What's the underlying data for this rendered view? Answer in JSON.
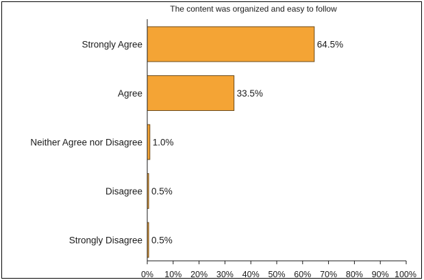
{
  "chart_data": {
    "type": "bar",
    "orientation": "horizontal",
    "title": "The content was organized and easy to follow",
    "xlabel": "",
    "ylabel": "",
    "categories": [
      "Strongly Agree",
      "Agree",
      "Neither Agree nor Disagree",
      "Disagree",
      "Strongly Disagree"
    ],
    "values": [
      64.5,
      33.5,
      1.0,
      0.5,
      0.5
    ],
    "value_labels": [
      "64.5%",
      "33.5%",
      "1.0%",
      "0.5%",
      "0.5%"
    ],
    "xlim": [
      0,
      100
    ],
    "x_ticks": [
      0,
      10,
      20,
      30,
      40,
      50,
      60,
      70,
      80,
      90,
      100
    ],
    "x_tick_labels": [
      "0%",
      "10%",
      "20%",
      "30%",
      "40%",
      "50%",
      "60%",
      "70%",
      "80%",
      "90%",
      "100%"
    ],
    "grid": false,
    "legend": "none",
    "colors": {
      "bar_fill": "#f4a435",
      "bar_stroke": "#6b4a1a",
      "axis": "#1a1a1a",
      "frame": "#000000"
    }
  }
}
